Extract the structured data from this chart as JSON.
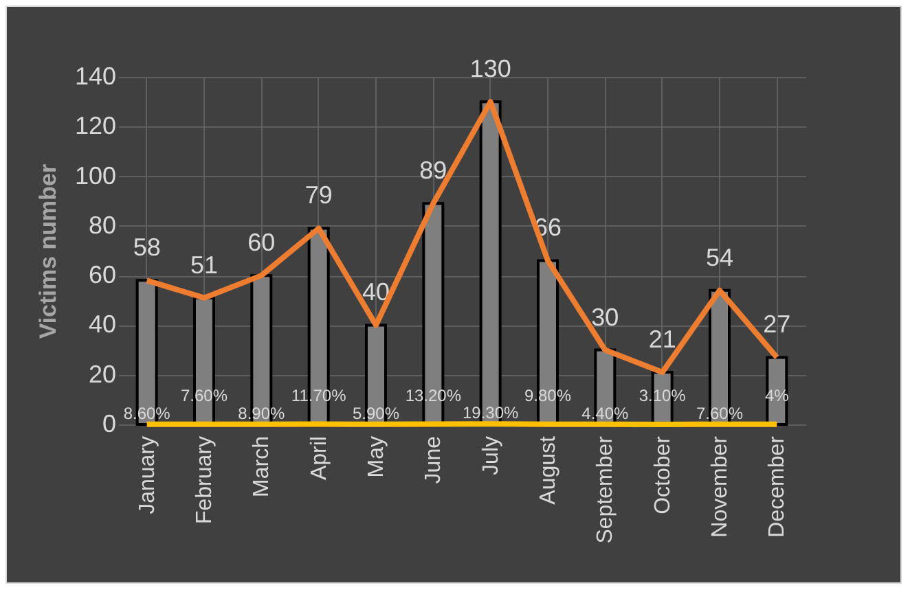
{
  "chart_data": {
    "type": "bar",
    "ylabel": "Victims number",
    "categories": [
      "January",
      "February",
      "March",
      "April",
      "May",
      "June",
      "July",
      "August",
      "September",
      "October",
      "November",
      "December"
    ],
    "series": [
      {
        "color": "#7f7f7f",
        "values": [
          58,
          51,
          60,
          79,
          40,
          89,
          130,
          66,
          30,
          21,
          54,
          27
        ],
        "value_labels": [
          "58",
          "51",
          "60",
          "79",
          "40",
          "89",
          "130",
          "66",
          "30",
          "21",
          "54",
          "27"
        ]
      },
      {
        "type": "line",
        "color": "#ed7d31",
        "values": [
          58,
          51,
          60,
          79,
          40,
          89,
          130,
          66,
          30,
          21,
          54,
          27
        ]
      },
      {
        "type": "line",
        "color": "#ffc000",
        "values": [
          0.086,
          0.076,
          0.089,
          0.117,
          0.059,
          0.132,
          0.193,
          0.098,
          0.044,
          0.031,
          0.076,
          0.04
        ],
        "value_labels": [
          "8.60%",
          "7.60%",
          "8.90%",
          "11.70%",
          "5.90%",
          "13.20%",
          "19.30%",
          "9.80%",
          "4.40%",
          "3.10%",
          "7.60%",
          "4%"
        ]
      }
    ],
    "ylim": [
      0,
      140
    ],
    "yticks": [
      0,
      20,
      40,
      60,
      80,
      100,
      120,
      140
    ],
    "grid": true
  }
}
